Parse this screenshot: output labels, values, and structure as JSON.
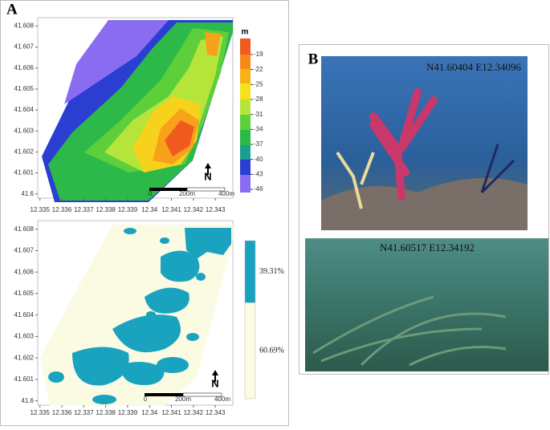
{
  "panel_a": {
    "label": "A",
    "depth_map": {
      "xlim": [
        12.3349,
        12.3438
      ],
      "ylim": [
        41.5998,
        41.6084
      ],
      "xticks": [
        12.335,
        12.336,
        12.337,
        12.338,
        12.339,
        12.34,
        12.341,
        12.342,
        12.343
      ],
      "yticks": [
        41.6,
        41.601,
        41.602,
        41.603,
        41.604,
        41.605,
        41.606,
        41.607,
        41.608
      ],
      "colorbar_title": "m",
      "colorbar_ticks": [
        -19,
        -22,
        -25,
        -28,
        -31,
        -34,
        -37,
        -40,
        -43,
        -46
      ],
      "scale_bar": [
        "0",
        "200m",
        "400m"
      ],
      "north": "N"
    },
    "cover_map": {
      "xlim": [
        12.3349,
        12.3438
      ],
      "ylim": [
        41.5998,
        41.6084
      ],
      "xticks": [
        12.335,
        12.336,
        12.337,
        12.338,
        12.339,
        12.34,
        12.341,
        12.342,
        12.343
      ],
      "yticks": [
        41.6,
        41.601,
        41.602,
        41.603,
        41.604,
        41.605,
        41.606,
        41.607,
        41.608
      ],
      "legend": [
        {
          "value": 39.31,
          "label": "39.31%",
          "color": "#1aa3bf"
        },
        {
          "value": 60.69,
          "label": "60.69%",
          "color": "#fbfae3"
        }
      ],
      "scale_bar": [
        "0",
        "200m",
        "400m"
      ],
      "north": "N"
    }
  },
  "panel_b": {
    "label": "B",
    "photos": [
      {
        "caption": "N41.60404 E12.34096"
      },
      {
        "caption": "N41.60517 E12.34192"
      }
    ]
  }
}
